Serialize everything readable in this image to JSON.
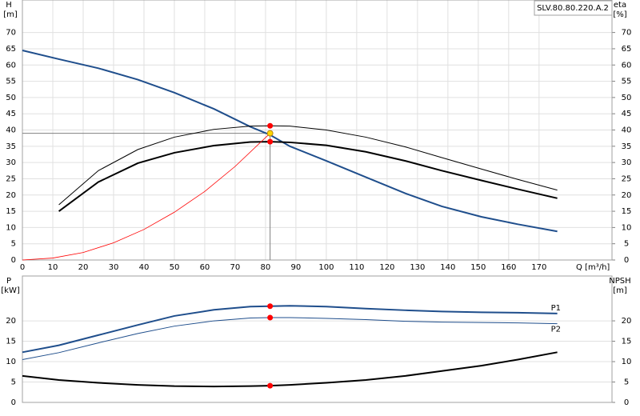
{
  "chart_data": [
    {
      "type": "line",
      "title": "SLV.80.80.220.A.2",
      "ylabel": "H",
      "yunit": "[m]",
      "y2label": "eta",
      "y2unit": "[%]",
      "xlabel": "Q [m³/h]",
      "xlim": [
        0,
        194
      ],
      "xticks": [
        0,
        10,
        20,
        30,
        40,
        50,
        60,
        70,
        80,
        90,
        100,
        110,
        120,
        130,
        140,
        150,
        160,
        170
      ],
      "ylim": [
        0,
        80
      ],
      "yticks": [
        0,
        5,
        10,
        15,
        20,
        25,
        30,
        35,
        40,
        45,
        50,
        55,
        60,
        65,
        70
      ],
      "y2lim": [
        0,
        80
      ],
      "y2ticks": [
        0,
        5,
        10,
        15,
        20,
        25,
        30,
        35,
        40,
        45,
        50,
        55,
        60,
        65,
        70
      ],
      "grid": true,
      "series": [
        {
          "color": "#1f4e8c",
          "width": 2,
          "x": [
            0,
            12,
            25,
            38,
            50,
            63,
            75,
            81.5,
            88,
            100,
            113,
            126,
            138,
            151,
            163,
            176
          ],
          "values": [
            64.5,
            61.8,
            59,
            55.5,
            51.5,
            46.5,
            41,
            38.5,
            35,
            30.5,
            25.5,
            20.5,
            16.5,
            13.3,
            11,
            8.8
          ]
        },
        {
          "color": "#000000",
          "width": 2,
          "axis": "y2",
          "x": [
            12,
            25,
            38,
            50,
            63,
            75,
            81.5,
            88,
            100,
            113,
            126,
            138,
            151,
            163,
            176
          ],
          "values": [
            15,
            24,
            29.8,
            33,
            35.2,
            36.3,
            36.4,
            36.2,
            35.3,
            33.3,
            30.5,
            27.5,
            24.5,
            21.8,
            19
          ]
        },
        {
          "color": "#000000",
          "width": 1,
          "axis": "y2",
          "x": [
            12,
            25,
            38,
            50,
            63,
            75,
            81.5,
            88,
            100,
            113,
            126,
            138,
            151,
            163,
            176
          ],
          "values": [
            17,
            27.5,
            34,
            37.8,
            40.2,
            41.2,
            41.3,
            41.2,
            40,
            37.8,
            34.8,
            31.5,
            28,
            24.8,
            21.5
          ]
        },
        {
          "color": "#ff0000",
          "width": 0.8,
          "x": [
            0,
            10,
            20,
            30,
            40,
            50,
            60,
            70,
            81.5
          ],
          "values": [
            0,
            0.6,
            2.3,
            5.3,
            9.4,
            14.7,
            21.1,
            28.8,
            39
          ]
        }
      ],
      "duty_point": {
        "x": 81.5,
        "y": 39,
        "color": "#808080"
      },
      "markers": [
        {
          "x": 81.5,
          "y": 41.3,
          "color": "#ff0000"
        },
        {
          "x": 81.5,
          "y": 36.4,
          "color": "#ff0000"
        },
        {
          "x": 81.5,
          "y": 39,
          "color": "#ffd700"
        }
      ]
    },
    {
      "type": "line",
      "ylabel": "P",
      "yunit": "[kW]",
      "y2label": "NPSH",
      "y2unit": "[m]",
      "xlim": [
        0,
        194
      ],
      "ylim": [
        0,
        31
      ],
      "yticks": [
        0,
        5,
        10,
        15,
        20
      ],
      "y2lim": [
        0,
        31
      ],
      "y2ticks": [
        0,
        5,
        10,
        15,
        20
      ],
      "grid": true,
      "series": [
        {
          "name": "P1",
          "color": "#1f4e8c",
          "width": 2,
          "x": [
            0,
            12,
            25,
            38,
            50,
            63,
            75,
            81.5,
            88,
            100,
            113,
            126,
            138,
            151,
            163,
            176
          ],
          "values": [
            12.3,
            14,
            16.5,
            19,
            21.2,
            22.7,
            23.5,
            23.6,
            23.7,
            23.5,
            23,
            22.6,
            22.3,
            22.1,
            22,
            21.8
          ]
        },
        {
          "name": "P2",
          "color": "#1f4e8c",
          "width": 1,
          "x": [
            0,
            12,
            25,
            38,
            50,
            63,
            75,
            81.5,
            88,
            100,
            113,
            126,
            138,
            151,
            163,
            176
          ],
          "values": [
            10.5,
            12.2,
            14.6,
            16.9,
            18.7,
            20,
            20.7,
            20.8,
            20.8,
            20.6,
            20.3,
            19.9,
            19.7,
            19.6,
            19.5,
            19.3
          ]
        },
        {
          "color": "#000000",
          "width": 2,
          "axis": "y2",
          "x": [
            0,
            12,
            25,
            38,
            50,
            63,
            75,
            81.5,
            88,
            100,
            113,
            126,
            138,
            151,
            163,
            176
          ],
          "values": [
            6.5,
            5.5,
            4.8,
            4.3,
            4.0,
            3.9,
            4.0,
            4.1,
            4.3,
            4.8,
            5.5,
            6.5,
            7.7,
            9,
            10.5,
            12.3
          ]
        }
      ],
      "markers": [
        {
          "x": 81.5,
          "y": 23.6,
          "color": "#ff0000"
        },
        {
          "x": 81.5,
          "y": 20.8,
          "color": "#ff0000"
        },
        {
          "x": 81.5,
          "y": 4.1,
          "color": "#ff0000"
        }
      ]
    }
  ]
}
